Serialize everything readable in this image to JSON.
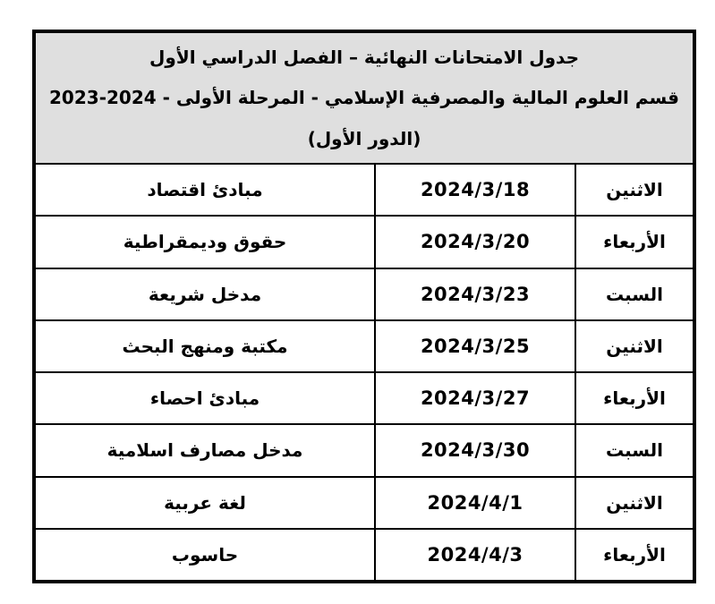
{
  "document": {
    "type": "exam-schedule-table",
    "direction": "rtl"
  },
  "header": {
    "line1": "جدول الامتحانات النهائية – الفصل الدراسي الأول",
    "line2": "قسم العلوم المالية والمصرفية الإسلامي - المرحلة الأولى - 2024-2023",
    "line3": "(الدور الأول)"
  },
  "rows": [
    {
      "subject": "مبادئ اقتصاد",
      "date": "2024/3/18",
      "day": "الاثنين"
    },
    {
      "subject": "حقوق وديمقراطية",
      "date": "2024/3/20",
      "day": "الأربعاء"
    },
    {
      "subject": "مدخل شريعة",
      "date": "2024/3/23",
      "day": "السبت"
    },
    {
      "subject": "مكتبة ومنهج البحث",
      "date": "2024/3/25",
      "day": "الاثنين"
    },
    {
      "subject": "مبادئ احصاء",
      "date": "2024/3/27",
      "day": "الأربعاء"
    },
    {
      "subject": "مدخل مصارف اسلامية",
      "date": "2024/3/30",
      "day": "السبت"
    },
    {
      "subject": "لغة عربية",
      "date": "2024/4/1",
      "day": "الاثنين"
    },
    {
      "subject": "حاسوب",
      "date": "2024/4/3",
      "day": "الأربعاء"
    }
  ],
  "colors": {
    "header_bg": "#dfdfdf",
    "border": "#000000",
    "text": "#000000",
    "page_bg": "#ffffff"
  }
}
